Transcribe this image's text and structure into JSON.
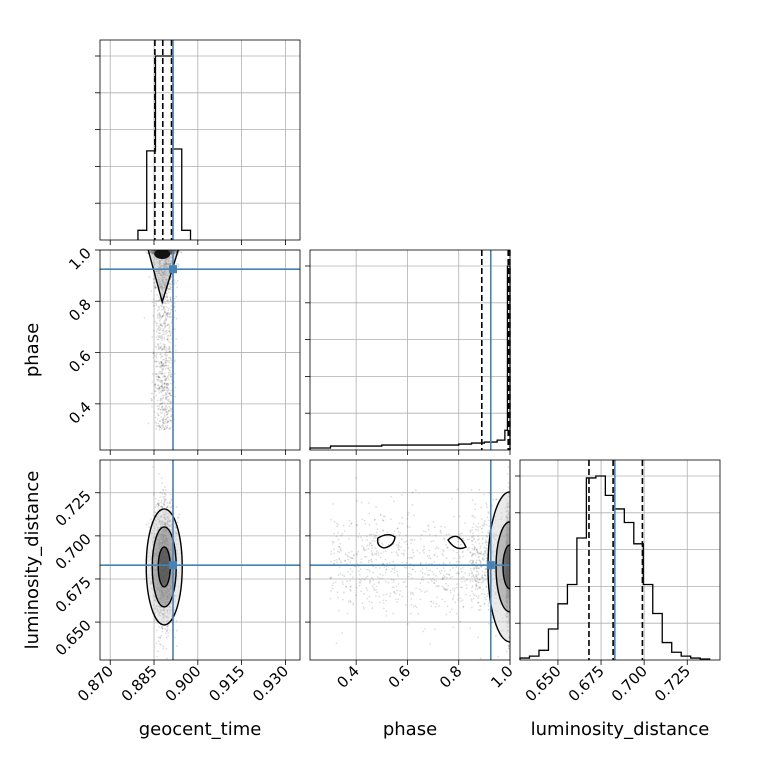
{
  "figure_title": "",
  "chart_data": {
    "type": "corner",
    "parameters": [
      "geocent_time",
      "phase",
      "luminosity_distance"
    ],
    "ranges": {
      "geocent_time": [
        0.8665,
        0.935
      ],
      "phase": [
        0.22,
        1.0
      ],
      "luminosity_distance": [
        0.628,
        0.744
      ]
    },
    "ticks": {
      "geocent_time": [
        "0.870",
        "0.885",
        "0.900",
        "0.915",
        "0.930"
      ],
      "phase": [
        "0.4",
        "0.6",
        "0.8",
        "1.0"
      ],
      "luminosity_distance": [
        "0.650",
        "0.675",
        "0.700",
        "0.725"
      ]
    },
    "truths": {
      "geocent_time": 0.8915,
      "phase": 0.925,
      "luminosity_distance": 0.683
    },
    "truth_color": "#4682b4",
    "quantiles": {
      "geocent_time": [
        0.8853,
        0.888,
        0.891
      ],
      "phase": [
        0.89,
        0.993,
        0.9995
      ],
      "luminosity_distance": [
        0.668,
        0.682,
        0.699
      ]
    },
    "histograms": {
      "geocent_time": {
        "bins": [
          0.8795,
          0.8825,
          0.8855,
          0.8885,
          0.8915,
          0.8945,
          0.8975
        ],
        "counts": [
          0.05,
          0.46,
          0.95,
          0.95,
          0.47,
          0.05
        ]
      },
      "phase": {
        "bins": [
          0.22,
          0.3,
          0.4,
          0.5,
          0.6,
          0.7,
          0.8,
          0.85,
          0.9,
          0.95,
          0.98,
          0.99,
          1.0
        ],
        "counts": [
          0.01,
          0.02,
          0.02,
          0.025,
          0.025,
          0.025,
          0.03,
          0.035,
          0.04,
          0.05,
          0.1,
          0.93
        ]
      },
      "luminosity_distance": {
        "bins": [
          0.628,
          0.6335,
          0.639,
          0.6445,
          0.65,
          0.6555,
          0.661,
          0.6665,
          0.672,
          0.6775,
          0.683,
          0.6885,
          0.694,
          0.6995,
          0.705,
          0.7105,
          0.716,
          0.7215,
          0.727,
          0.7325,
          0.738
        ],
        "counts": [
          0.01,
          0.02,
          0.05,
          0.16,
          0.29,
          0.39,
          0.63,
          0.94,
          0.95,
          0.85,
          0.78,
          0.71,
          0.6,
          0.39,
          0.24,
          0.09,
          0.04,
          0.02,
          0.01,
          0.005
        ]
      }
    },
    "grid": true
  }
}
